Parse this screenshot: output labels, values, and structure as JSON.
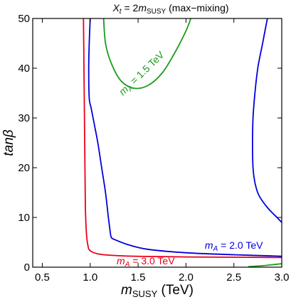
{
  "chart_data": {
    "type": "line",
    "title_parts": {
      "var": "X",
      "var_sub": "t",
      "eq": " = 2",
      "m": "m",
      "m_sub": "SUSY",
      "suffix": " (max−mixing)"
    },
    "xlabel_parts": {
      "m": "m",
      "m_sub": "SUSY",
      "unit": " (TeV)"
    },
    "ylabel": "tanβ",
    "xlim": [
      0.4,
      3.0
    ],
    "ylim": [
      0,
      50
    ],
    "x_ticks": [
      "0.5",
      "1.0",
      "1.5",
      "2.0",
      "2.5",
      "3.0"
    ],
    "y_ticks": [
      "0",
      "10",
      "20",
      "30",
      "40",
      "50"
    ],
    "grid": false,
    "series": [
      {
        "color": "#e8001c",
        "label_parts": {
          "m": "m",
          "sub": "A",
          "eq": " = 3.0 TeV"
        },
        "label_pos": [
          1.58,
          0.6
        ],
        "label_rot": 0,
        "curves": [
          [
            [
              0.93,
              50
            ],
            [
              0.935,
              40
            ],
            [
              0.94,
              30
            ],
            [
              0.945,
              20
            ],
            [
              0.95,
              12
            ],
            [
              0.96,
              7
            ],
            [
              0.975,
              4.5
            ],
            [
              1.0,
              3.3
            ],
            [
              1.1,
              2.6
            ],
            [
              1.3,
              2.3
            ],
            [
              1.6,
              2.15
            ],
            [
              2.0,
              2.05
            ],
            [
              2.5,
              2.0
            ],
            [
              3.0,
              1.95
            ]
          ]
        ]
      },
      {
        "color": "#0000dd",
        "label_parts": {
          "m": "m",
          "sub": "A",
          "eq": " = 2.0 TeV"
        },
        "label_pos": [
          2.5,
          3.7
        ],
        "label_rot": 0,
        "curves": [
          [
            [
              1.0,
              50
            ],
            [
              0.99,
              45
            ],
            [
              0.985,
              40
            ],
            [
              0.99,
              34
            ],
            [
              1.01,
              32
            ],
            [
              1.04,
              29
            ],
            [
              1.08,
              25
            ],
            [
              1.12,
              20
            ],
            [
              1.16,
              15
            ],
            [
              1.19,
              10
            ],
            [
              1.21,
              7
            ],
            [
              1.22,
              6.0
            ],
            [
              1.25,
              5.6
            ],
            [
              1.4,
              4.5
            ],
            [
              1.6,
              3.6
            ],
            [
              2.0,
              2.9
            ],
            [
              2.5,
              2.5
            ],
            [
              3.0,
              2.2
            ]
          ],
          [
            [
              2.85,
              50
            ],
            [
              2.8,
              45
            ],
            [
              2.75,
              40
            ],
            [
              2.72,
              35
            ],
            [
              2.7,
              30
            ],
            [
              2.695,
              25
            ],
            [
              2.7,
              20
            ],
            [
              2.72,
              17
            ],
            [
              2.76,
              14.5
            ],
            [
              2.85,
              12
            ],
            [
              2.95,
              10
            ],
            [
              3.0,
              9
            ]
          ]
        ]
      },
      {
        "color": "#1a9c1a",
        "label_parts": {
          "m": "m",
          "sub": "A",
          "eq": " = 1.5 TeV"
        },
        "label_pos": [
          1.56,
          38.5
        ],
        "label_rot": -44,
        "curves": [
          [
            [
              1.14,
              50
            ],
            [
              1.16,
              45
            ],
            [
              1.22,
              41
            ],
            [
              1.32,
              37.5
            ],
            [
              1.45,
              36
            ],
            [
              1.6,
              36.5
            ],
            [
              1.75,
              39
            ],
            [
              1.88,
              43
            ],
            [
              2.0,
              47.5
            ],
            [
              2.05,
              50
            ]
          ],
          [
            [
              2.65,
              0.1
            ],
            [
              2.8,
              0.3
            ],
            [
              2.95,
              0.6
            ],
            [
              3.0,
              0.7
            ]
          ]
        ]
      }
    ]
  }
}
